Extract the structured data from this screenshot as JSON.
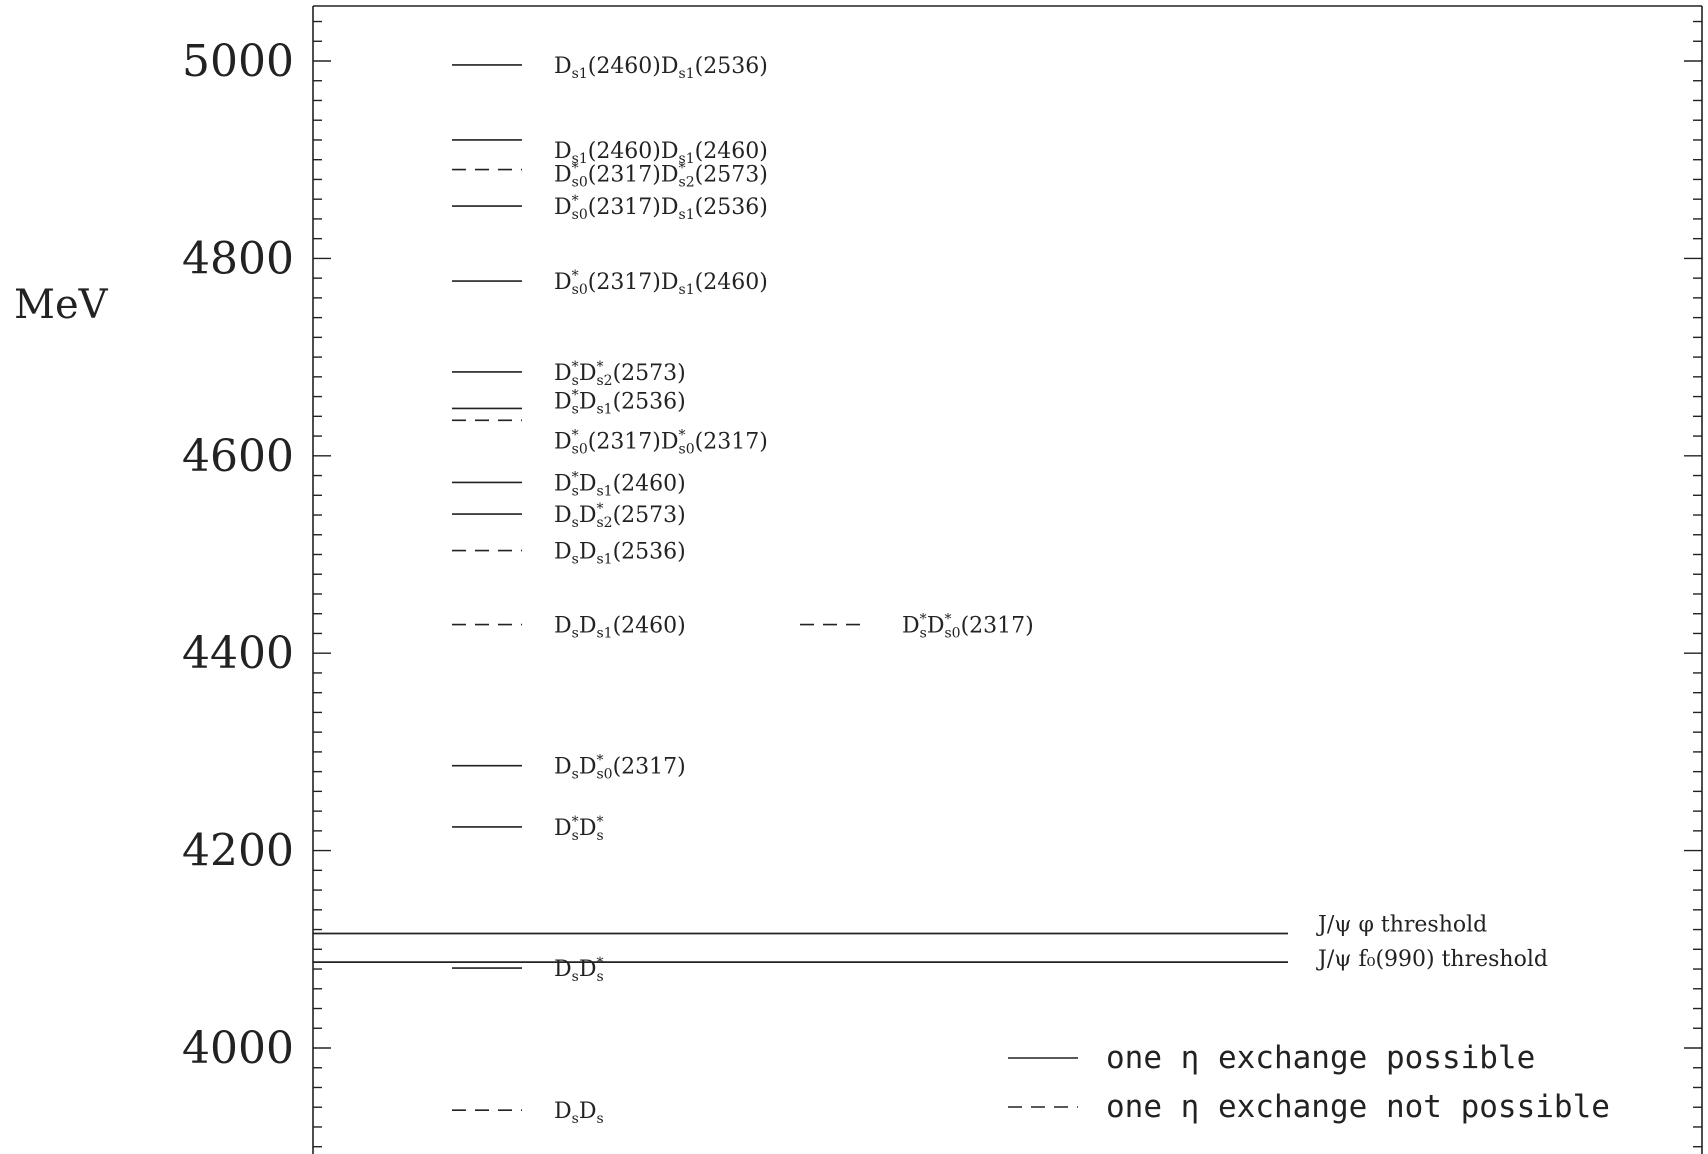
{
  "chart_data": {
    "type": "level-diagram",
    "ylabel": "MeV",
    "ylim": [
      3890,
      5050
    ],
    "yticks": [
      4000,
      4200,
      4400,
      4600,
      4800,
      5000
    ],
    "yticks_labels": [
      "4000",
      "4200",
      "4400",
      "4600",
      "4800",
      "5000"
    ],
    "levels": [
      {
        "name": "DsDs",
        "value": 3937,
        "column": 1,
        "style": "dashed",
        "label": [
          [
            "D",
            ""
          ],
          [
            "s",
            "sub"
          ],
          [
            "D",
            ""
          ],
          [
            "s",
            "sub"
          ]
        ]
      },
      {
        "name": "DsDs*",
        "value": 4081,
        "column": 1,
        "style": "solid",
        "label": [
          [
            "D",
            ""
          ],
          [
            "s",
            "sub"
          ],
          [
            "D",
            ""
          ],
          [
            "*",
            "sup"
          ],
          [
            "s",
            "sub"
          ]
        ]
      },
      {
        "name": "Ds*Ds*",
        "value": 4224,
        "column": 1,
        "style": "solid",
        "label": [
          [
            "D",
            ""
          ],
          [
            "*",
            "sup"
          ],
          [
            "s",
            "sub"
          ],
          [
            "D",
            ""
          ],
          [
            "*",
            "sup"
          ],
          [
            "s",
            "sub"
          ]
        ]
      },
      {
        "name": "DsDs0*(2317)",
        "value": 4286,
        "column": 1,
        "style": "solid",
        "label": [
          [
            "D",
            ""
          ],
          [
            "s",
            "sub"
          ],
          [
            "D",
            ""
          ],
          [
            "*",
            "sup"
          ],
          [
            "s0",
            "sub"
          ],
          [
            "(2317)",
            ""
          ]
        ]
      },
      {
        "name": "DsDs1(2460)",
        "value": 4429,
        "column": 1,
        "style": "dashed",
        "label": [
          [
            "D",
            ""
          ],
          [
            "s",
            "sub"
          ],
          [
            "D",
            ""
          ],
          [
            "s1",
            "sub"
          ],
          [
            "(2460)",
            ""
          ]
        ]
      },
      {
        "name": "Ds*Ds0*(2317)",
        "value": 4429,
        "column": 2,
        "style": "dashed",
        "label": [
          [
            "D",
            ""
          ],
          [
            "*",
            "sup"
          ],
          [
            "s",
            "sub"
          ],
          [
            "D",
            ""
          ],
          [
            "*",
            "sup"
          ],
          [
            "s0",
            "sub"
          ],
          [
            "(2317)",
            ""
          ]
        ]
      },
      {
        "name": "DsDs1(2536)",
        "value": 4504,
        "column": 1,
        "style": "dashed",
        "label": [
          [
            "D",
            ""
          ],
          [
            "s",
            "sub"
          ],
          [
            "D",
            ""
          ],
          [
            "s1",
            "sub"
          ],
          [
            "(2536)",
            ""
          ]
        ]
      },
      {
        "name": "DsDs2*(2573)",
        "value": 4541,
        "column": 1,
        "style": "solid",
        "label": [
          [
            "D",
            ""
          ],
          [
            "s",
            "sub"
          ],
          [
            "D",
            ""
          ],
          [
            "*",
            "sup"
          ],
          [
            "s2",
            "sub"
          ],
          [
            "(2573)",
            ""
          ]
        ]
      },
      {
        "name": "Ds*Ds1(2460)",
        "value": 4573,
        "column": 1,
        "style": "solid",
        "label": [
          [
            "D",
            ""
          ],
          [
            "*",
            "sup"
          ],
          [
            "s",
            "sub"
          ],
          [
            "D",
            ""
          ],
          [
            "s1",
            "sub"
          ],
          [
            "(2460)",
            ""
          ]
        ]
      },
      {
        "name": "Ds*Ds1(2536)",
        "value": 4648,
        "column": 1,
        "style": "solid",
        "label": [
          [
            "D",
            ""
          ],
          [
            "*",
            "sup"
          ],
          [
            "s",
            "sub"
          ],
          [
            "D",
            ""
          ],
          [
            "s1",
            "sub"
          ],
          [
            "(2536)",
            ""
          ]
        ]
      },
      {
        "name": "Ds0*(2317)Ds0*(2317)",
        "value": 4636,
        "column": 1,
        "style": "dashed",
        "label": [
          [
            "D",
            ""
          ],
          [
            "*",
            "sup"
          ],
          [
            "s0",
            "sub"
          ],
          [
            "(2317)",
            ""
          ],
          [
            "D",
            ""
          ],
          [
            "*",
            "sup"
          ],
          [
            "s0",
            "sub"
          ],
          [
            "(2317)",
            ""
          ]
        ]
      },
      {
        "name": "Ds*Ds2*(2573)",
        "value": 4685,
        "column": 1,
        "style": "solid",
        "label": [
          [
            "D",
            ""
          ],
          [
            "*",
            "sup"
          ],
          [
            "s",
            "sub"
          ],
          [
            "D",
            ""
          ],
          [
            "*",
            "sup"
          ],
          [
            "s2",
            "sub"
          ],
          [
            "(2573)",
            ""
          ]
        ]
      },
      {
        "name": "Ds0*(2317)Ds1(2460)",
        "value": 4777,
        "column": 1,
        "style": "solid",
        "label": [
          [
            "D",
            ""
          ],
          [
            "*",
            "sup"
          ],
          [
            "s0",
            "sub"
          ],
          [
            "(2317)",
            ""
          ],
          [
            "D",
            ""
          ],
          [
            "s1",
            "sub"
          ],
          [
            "(2460)",
            ""
          ]
        ]
      },
      {
        "name": "Ds0*(2317)Ds1(2536)",
        "value": 4853,
        "column": 1,
        "style": "solid",
        "label": [
          [
            "D",
            ""
          ],
          [
            "*",
            "sup"
          ],
          [
            "s0",
            "sub"
          ],
          [
            "(2317)",
            ""
          ],
          [
            "D",
            ""
          ],
          [
            "s1",
            "sub"
          ],
          [
            "(2536)",
            ""
          ]
        ]
      },
      {
        "name": "Ds0*(2317)Ds2*(2573)",
        "value": 4890,
        "column": 1,
        "style": "dashed",
        "label": [
          [
            "D",
            ""
          ],
          [
            "*",
            "sup"
          ],
          [
            "s0",
            "sub"
          ],
          [
            "(2317)",
            ""
          ],
          [
            "D",
            ""
          ],
          [
            "*",
            "sup"
          ],
          [
            "s2",
            "sub"
          ],
          [
            "(2573)",
            ""
          ]
        ]
      },
      {
        "name": "Ds1(2460)Ds1(2460)",
        "value": 4920,
        "column": 1,
        "style": "solid",
        "label": [
          [
            "D",
            ""
          ],
          [
            "s1",
            "sub"
          ],
          [
            "(2460)",
            ""
          ],
          [
            "D",
            ""
          ],
          [
            "s1",
            "sub"
          ],
          [
            "(2460)",
            ""
          ]
        ]
      },
      {
        "name": "Ds1(2460)Ds1(2536)",
        "value": 4996,
        "column": 1,
        "style": "solid",
        "label": [
          [
            "D",
            ""
          ],
          [
            "s1",
            "sub"
          ],
          [
            "(2460)",
            ""
          ],
          [
            "D",
            ""
          ],
          [
            "s1",
            "sub"
          ],
          [
            "(2536)",
            ""
          ]
        ]
      }
    ],
    "thresholds": [
      {
        "name": "J/psi phi",
        "value": 4116,
        "label": "J/ψ φ threshold"
      },
      {
        "name": "J/psi f0(990)",
        "value": 4087,
        "label": "J/ψ f₀(990) threshold"
      }
    ],
    "legend": [
      {
        "style": "solid",
        "label": "one η exchange possible"
      },
      {
        "style": "dashed",
        "label": "one η exchange not possible"
      }
    ],
    "legend_position": "bottom-right"
  }
}
